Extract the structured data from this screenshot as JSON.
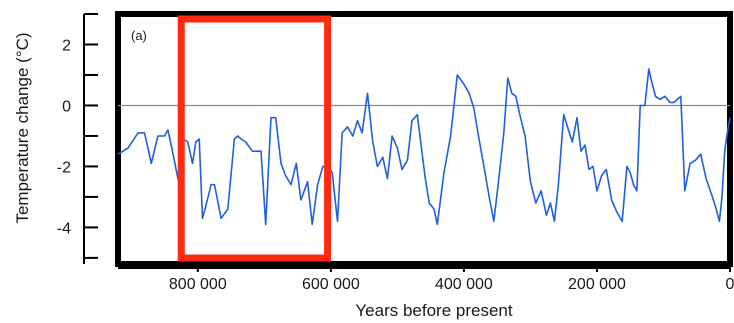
{
  "chart_data": {
    "type": "line",
    "panel_label": "(a)",
    "xlabel": "Years before present",
    "ylabel": "Temperature change (°C)",
    "xlim": [
      0,
      920000
    ],
    "xlim_reversed": true,
    "ylim": [
      -5.2,
      3.0
    ],
    "x_ticks": [
      {
        "value": 800000,
        "label": "800 000"
      },
      {
        "value": 600000,
        "label": "600 000"
      },
      {
        "value": 400000,
        "label": "400 000"
      },
      {
        "value": 200000,
        "label": "200 000"
      },
      {
        "value": 0,
        "label": "0"
      }
    ],
    "y_ticks": [
      {
        "value": 2,
        "label": "2"
      },
      {
        "value": 0,
        "label": "0"
      },
      {
        "value": -2,
        "label": "-2"
      },
      {
        "value": -4,
        "label": "-4"
      }
    ],
    "reference_line_y": 0,
    "series": [
      {
        "color": "#1f5fe0",
        "x": [
          920000,
          905000,
          890000,
          880000,
          870000,
          860000,
          850000,
          845000,
          838000,
          830000,
          822000,
          815000,
          808000,
          803000,
          798000,
          793000,
          788000,
          780000,
          775000,
          765000,
          755000,
          745000,
          740000,
          735000,
          728000,
          718000,
          705000,
          698000,
          690000,
          683000,
          675000,
          668000,
          660000,
          652000,
          645000,
          635000,
          628000,
          620000,
          612000,
          605000,
          598000,
          590000,
          583000,
          575000,
          567000,
          560000,
          553000,
          545000,
          537000,
          530000,
          522000,
          515000,
          508000,
          500000,
          493000,
          485000,
          478000,
          470000,
          465000,
          458000,
          452000,
          445000,
          440000,
          430000,
          420000,
          410000,
          400000,
          392000,
          385000,
          378000,
          370000,
          362000,
          355000,
          348000,
          340000,
          334000,
          328000,
          322000,
          316000,
          308000,
          300000,
          292000,
          284000,
          276000,
          270000,
          264000,
          258000,
          250000,
          243000,
          237000,
          230000,
          224000,
          218000,
          212000,
          206000,
          200000,
          193000,
          186000,
          178000,
          170000,
          162000,
          155000,
          150000,
          145000,
          140000,
          135000,
          128000,
          122000,
          118000,
          112000,
          105000,
          98000,
          90000,
          84000,
          79000,
          74000,
          68000,
          60000,
          52000,
          44000,
          36000,
          28000,
          22000,
          16000,
          12000,
          8000,
          4000,
          0
        ],
        "y": [
          -1.6,
          -1.4,
          -0.9,
          -0.9,
          -1.9,
          -1.0,
          -1.0,
          -0.8,
          -1.5,
          -2.4,
          -1.1,
          -1.2,
          -1.9,
          -1.2,
          -1.1,
          -3.7,
          -3.3,
          -2.6,
          -2.6,
          -3.7,
          -3.4,
          -1.1,
          -1.0,
          -1.1,
          -1.2,
          -1.5,
          -1.5,
          -3.9,
          -0.4,
          -0.4,
          -1.9,
          -2.3,
          -2.6,
          -1.9,
          -3.1,
          -2.5,
          -3.9,
          -2.6,
          -2.0,
          -2.0,
          -2.2,
          -3.8,
          -0.9,
          -0.7,
          -1.0,
          -0.5,
          -0.9,
          0.4,
          -1.2,
          -2.0,
          -1.7,
          -2.4,
          -1.0,
          -1.4,
          -2.1,
          -1.8,
          -0.5,
          -0.3,
          -1.2,
          -2.4,
          -3.2,
          -3.4,
          -3.9,
          -2.2,
          -1.0,
          1.0,
          0.7,
          0.4,
          -0.1,
          -1.0,
          -2.0,
          -3.0,
          -3.8,
          -2.5,
          -0.9,
          0.9,
          0.4,
          0.3,
          -0.3,
          -1.0,
          -2.5,
          -3.2,
          -2.8,
          -3.6,
          -3.2,
          -3.8,
          -2.6,
          -0.3,
          -0.8,
          -1.2,
          -0.4,
          -1.5,
          -1.3,
          -2.1,
          -2.0,
          -2.8,
          -2.3,
          -2.1,
          -3.1,
          -3.5,
          -3.8,
          -2.0,
          -2.2,
          -2.6,
          -2.8,
          0.0,
          0.0,
          1.2,
          0.8,
          0.3,
          0.2,
          0.3,
          0.1,
          0.1,
          0.2,
          0.3,
          -2.8,
          -1.9,
          -1.8,
          -1.6,
          -2.4,
          -2.9,
          -3.3,
          -3.8,
          -3.0,
          -1.5,
          -0.9,
          -0.4
        ]
      }
    ],
    "highlight_box": {
      "x_start": 825000,
      "x_end": 605000,
      "color": "#ff2a10"
    }
  }
}
